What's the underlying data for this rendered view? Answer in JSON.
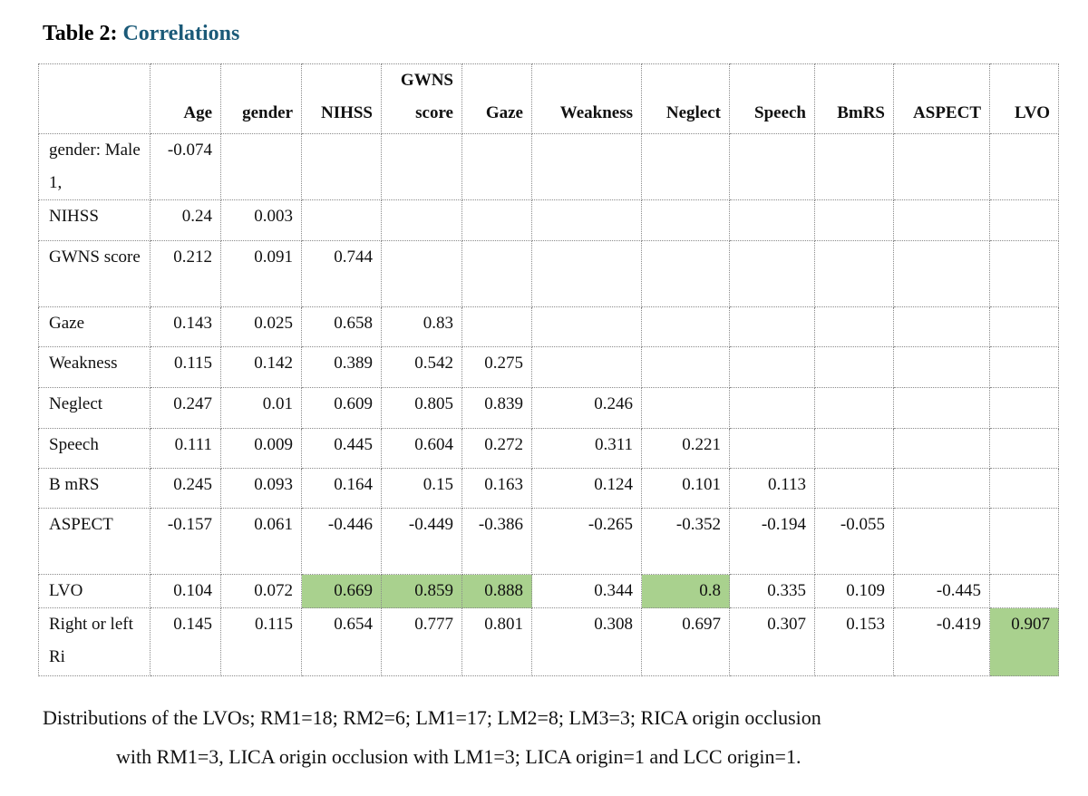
{
  "header": {
    "label": "Table 2:",
    "title": "Correlations"
  },
  "table": {
    "columns": [
      "Age",
      "gender",
      "NIHSS",
      "GWNS score",
      "Gaze",
      "Weakness",
      "Neglect",
      "Speech",
      "BmRS",
      "ASPECT",
      "LVO"
    ],
    "rows": [
      {
        "label": "gender: Male 1,",
        "values": [
          "-0.074"
        ]
      },
      {
        "label": "NIHSS",
        "values": [
          "0.24",
          "0.003"
        ]
      },
      {
        "label": "GWNS score",
        "values": [
          "0.212",
          "0.091",
          "0.744"
        ]
      },
      {
        "label": "Gaze",
        "values": [
          "0.143",
          "0.025",
          "0.658",
          "0.83"
        ]
      },
      {
        "label": "Weakness",
        "values": [
          "0.115",
          "0.142",
          "0.389",
          "0.542",
          "0.275"
        ]
      },
      {
        "label": "Neglect",
        "values": [
          "0.247",
          "0.01",
          "0.609",
          "0.805",
          "0.839",
          "0.246"
        ]
      },
      {
        "label": "Speech",
        "values": [
          "0.111",
          "0.009",
          "0.445",
          "0.604",
          "0.272",
          "0.311",
          "0.221"
        ]
      },
      {
        "label": "B mRS",
        "values": [
          "0.245",
          "0.093",
          "0.164",
          "0.15",
          "0.163",
          "0.124",
          "0.101",
          "0.113"
        ]
      },
      {
        "label": "ASPECT",
        "values": [
          "-0.157",
          "0.061",
          "-0.446",
          "-0.449",
          "-0.386",
          "-0.265",
          "-0.352",
          "-0.194",
          "-0.055"
        ]
      },
      {
        "label": "LVO",
        "values": [
          "0.104",
          "0.072",
          "0.669",
          "0.859",
          "0.888",
          "0.344",
          "0.8",
          "0.335",
          "0.109",
          "-0.445"
        ]
      },
      {
        "label": "Right or left Ri",
        "values": [
          "0.145",
          "0.115",
          "0.654",
          "0.777",
          "0.801",
          "0.308",
          "0.697",
          "0.307",
          "0.153",
          "-0.419",
          "0.907"
        ]
      }
    ]
  },
  "footnote": {
    "line1": "Distributions of the LVOs; RM1=18; RM2=6; LM1=17; LM2=8; LM3=3; RICA origin occlusion",
    "line2": "with RM1=3, LICA origin occlusion with LM1=3; LICA origin=1 and LCC origin=1."
  }
}
